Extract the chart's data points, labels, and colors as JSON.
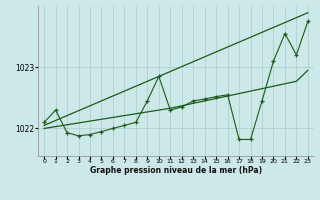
{
  "background_color": "#cce8e8",
  "grid_color": "#aacccc",
  "line_color": "#1a5c1a",
  "xlabel": "Graphe pression niveau de la mer (hPa)",
  "yticks": [
    1022,
    1023
  ],
  "ylim": [
    1021.55,
    1024.0
  ],
  "xlim": [
    -0.5,
    23.5
  ],
  "xticks": [
    0,
    1,
    2,
    3,
    4,
    5,
    6,
    7,
    8,
    9,
    10,
    11,
    12,
    13,
    14,
    15,
    16,
    17,
    18,
    19,
    20,
    21,
    22,
    23
  ],
  "series": {
    "main": [
      1022.1,
      1022.3,
      1021.93,
      1021.88,
      1021.9,
      1021.95,
      1022.0,
      1022.05,
      1022.1,
      1022.45,
      1022.85,
      1022.3,
      1022.35,
      1022.45,
      1022.48,
      1022.52,
      1022.55,
      1021.82,
      1021.82,
      1022.45,
      1023.1,
      1023.55,
      1023.2,
      1023.75
    ],
    "trend_upper": [
      1022.05,
      1022.13,
      1022.21,
      1022.29,
      1022.37,
      1022.45,
      1022.53,
      1022.61,
      1022.69,
      1022.77,
      1022.85,
      1022.93,
      1023.01,
      1023.09,
      1023.17,
      1023.25,
      1023.33,
      1023.41,
      1023.49,
      1023.57,
      1023.65,
      1023.73,
      1023.81,
      1023.89
    ],
    "trend_lower": [
      1022.0,
      1022.03,
      1022.06,
      1022.09,
      1022.12,
      1022.15,
      1022.18,
      1022.21,
      1022.24,
      1022.27,
      1022.3,
      1022.33,
      1022.37,
      1022.41,
      1022.45,
      1022.49,
      1022.53,
      1022.57,
      1022.61,
      1022.65,
      1022.69,
      1022.73,
      1022.77,
      1022.95
    ]
  }
}
